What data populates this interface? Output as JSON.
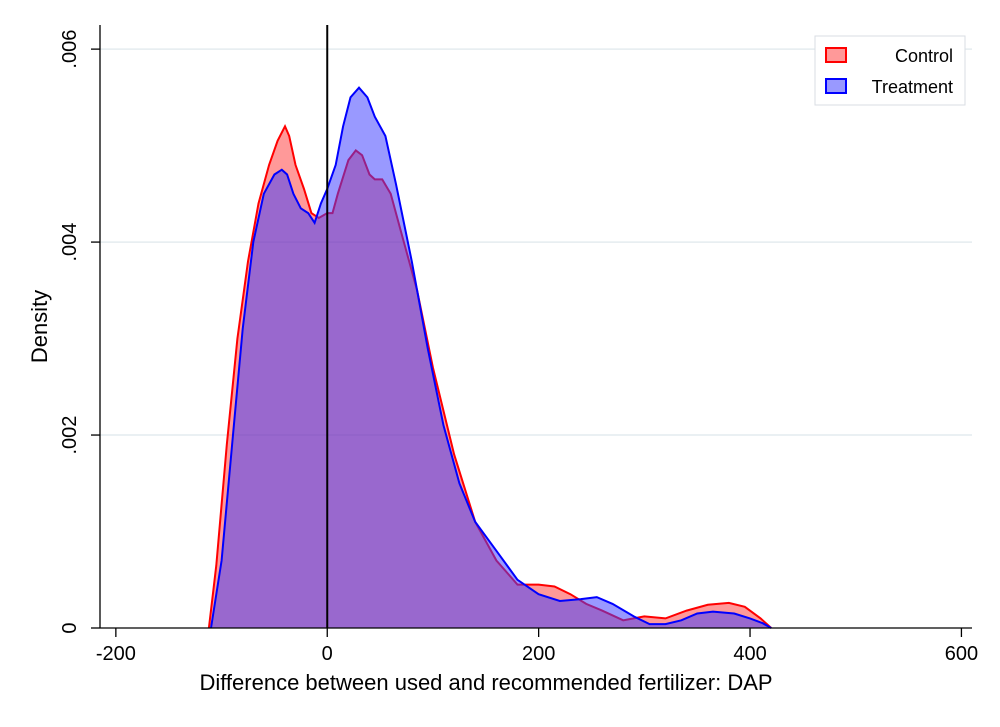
{
  "chart_data": {
    "type": "area",
    "title": "",
    "xlabel": "Difference between used and recommended fertilizer: DAP",
    "ylabel": "Density",
    "xlim": [
      -215,
      610
    ],
    "ylim": [
      0,
      0.006
    ],
    "x_ticks": [
      -200,
      0,
      200,
      400,
      600
    ],
    "x_tick_labels": [
      "-200",
      "0",
      "200",
      "400",
      "600"
    ],
    "y_ticks": [
      0,
      0.002,
      0.004,
      0.006
    ],
    "y_tick_labels": [
      "0",
      ".002",
      ".004",
      ".006"
    ],
    "grid": "horizontal",
    "legend_position": "top-right",
    "reference_line_x": 0,
    "series": [
      {
        "name": "Control",
        "color": "#ff0000",
        "fill": "rgba(255,0,0,0.4)",
        "points": [
          [
            -112,
            0
          ],
          [
            -105,
            0.00065
          ],
          [
            -95,
            0.0019
          ],
          [
            -85,
            0.003
          ],
          [
            -75,
            0.0038
          ],
          [
            -65,
            0.0044
          ],
          [
            -55,
            0.0048
          ],
          [
            -47,
            0.00505
          ],
          [
            -40,
            0.0052
          ],
          [
            -36,
            0.0051
          ],
          [
            -30,
            0.0048
          ],
          [
            -22,
            0.00455
          ],
          [
            -15,
            0.0043
          ],
          [
            -8,
            0.00425
          ],
          [
            0,
            0.0043
          ],
          [
            5,
            0.0043
          ],
          [
            10,
            0.0045
          ],
          [
            20,
            0.00485
          ],
          [
            27,
            0.00495
          ],
          [
            33,
            0.0049
          ],
          [
            40,
            0.0047
          ],
          [
            45,
            0.00465
          ],
          [
            52,
            0.00465
          ],
          [
            60,
            0.0045
          ],
          [
            70,
            0.0041
          ],
          [
            85,
            0.0035
          ],
          [
            100,
            0.0027
          ],
          [
            120,
            0.0018
          ],
          [
            140,
            0.0011
          ],
          [
            160,
            0.0007
          ],
          [
            180,
            0.00045
          ],
          [
            200,
            0.00045
          ],
          [
            215,
            0.00043
          ],
          [
            230,
            0.00035
          ],
          [
            245,
            0.00025
          ],
          [
            260,
            0.00018
          ],
          [
            280,
            8e-05
          ],
          [
            300,
            0.00012
          ],
          [
            320,
            0.0001
          ],
          [
            340,
            0.00018
          ],
          [
            360,
            0.00024
          ],
          [
            380,
            0.00026
          ],
          [
            395,
            0.00022
          ],
          [
            410,
            0.0001
          ],
          [
            420,
            0
          ]
        ]
      },
      {
        "name": "Treatment",
        "color": "#0000ff",
        "fill": "rgba(60,60,255,0.52)",
        "points": [
          [
            -110,
            0
          ],
          [
            -100,
            0.0007
          ],
          [
            -90,
            0.0019
          ],
          [
            -80,
            0.0031
          ],
          [
            -70,
            0.004
          ],
          [
            -60,
            0.0045
          ],
          [
            -50,
            0.0047
          ],
          [
            -43,
            0.00475
          ],
          [
            -38,
            0.0047
          ],
          [
            -32,
            0.0045
          ],
          [
            -25,
            0.00435
          ],
          [
            -18,
            0.0043
          ],
          [
            -12,
            0.0042
          ],
          [
            -6,
            0.0044
          ],
          [
            0,
            0.00455
          ],
          [
            8,
            0.0048
          ],
          [
            15,
            0.0052
          ],
          [
            22,
            0.0055
          ],
          [
            30,
            0.0056
          ],
          [
            38,
            0.0055
          ],
          [
            45,
            0.0053
          ],
          [
            55,
            0.0051
          ],
          [
            65,
            0.0046
          ],
          [
            80,
            0.0038
          ],
          [
            95,
            0.0029
          ],
          [
            110,
            0.0021
          ],
          [
            125,
            0.0015
          ],
          [
            140,
            0.0011
          ],
          [
            160,
            0.0008
          ],
          [
            180,
            0.0005
          ],
          [
            200,
            0.00035
          ],
          [
            220,
            0.00028
          ],
          [
            240,
            0.0003
          ],
          [
            255,
            0.00032
          ],
          [
            270,
            0.00025
          ],
          [
            290,
            0.00012
          ],
          [
            305,
            4e-05
          ],
          [
            320,
            4e-05
          ],
          [
            335,
            8e-05
          ],
          [
            350,
            0.00015
          ],
          [
            365,
            0.00017
          ],
          [
            385,
            0.00015
          ],
          [
            400,
            0.0001
          ],
          [
            412,
            5e-05
          ],
          [
            420,
            0
          ]
        ]
      }
    ]
  }
}
